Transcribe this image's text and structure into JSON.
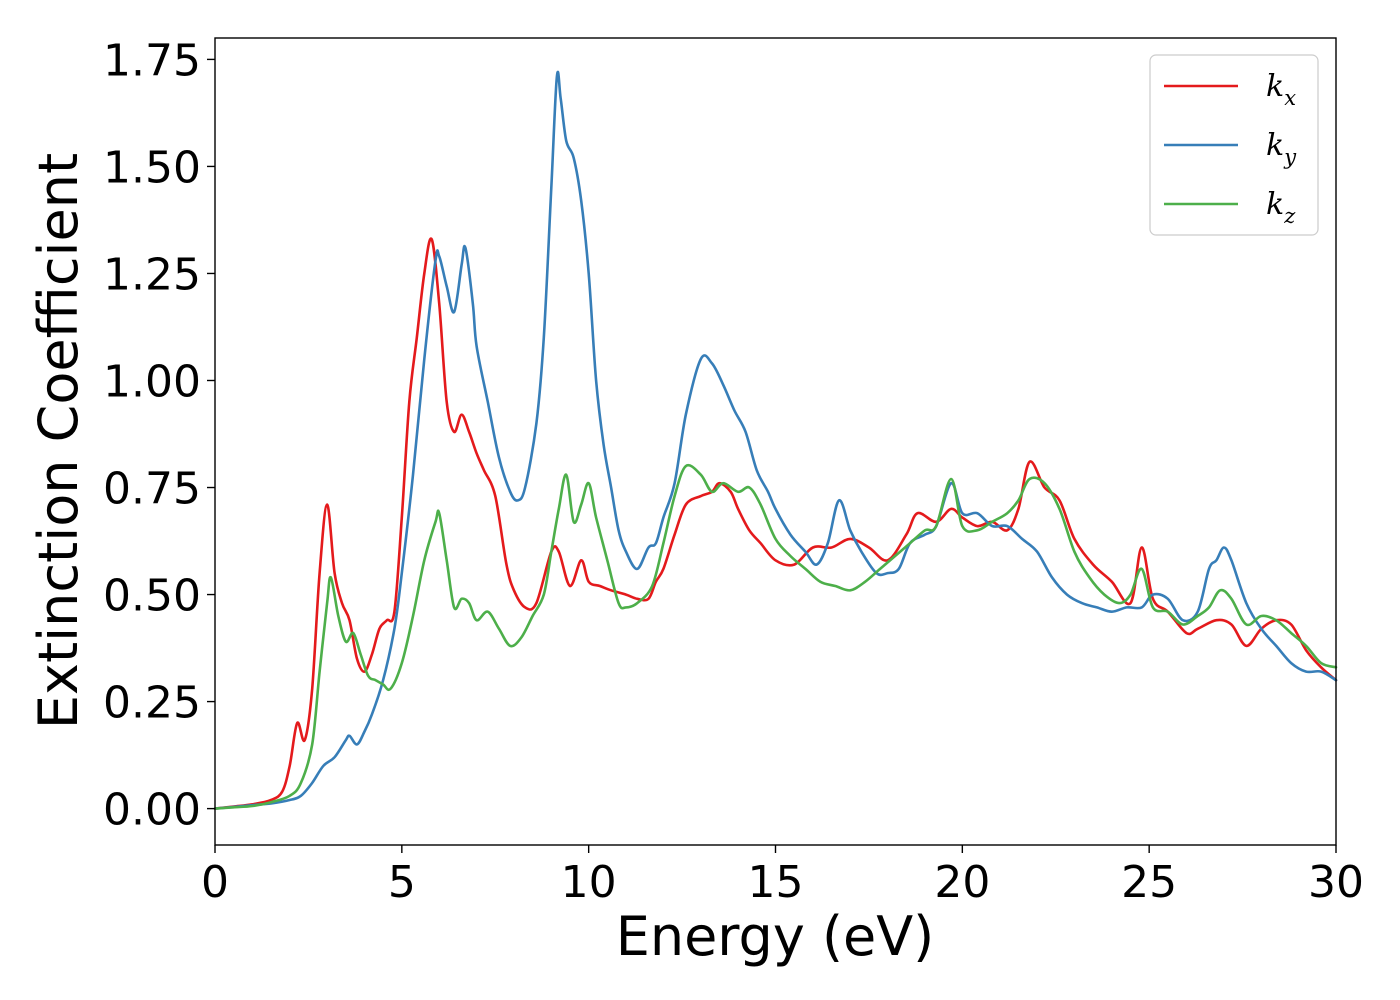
{
  "chart_data": {
    "type": "line",
    "title": "",
    "xlabel": "Energy (eV)",
    "ylabel": "Extinction Coefficient",
    "xlim": [
      0,
      30
    ],
    "ylim": [
      -0.085,
      1.8
    ],
    "xticks": [
      0,
      5,
      10,
      15,
      20,
      25,
      30
    ],
    "xtick_labels": [
      "0",
      "5",
      "10",
      "15",
      "20",
      "25",
      "30"
    ],
    "yticks": [
      0,
      0.25,
      0.5,
      0.75,
      1.0,
      1.25,
      1.5,
      1.75
    ],
    "ytick_labels": [
      "0.00",
      "0.25",
      "0.50",
      "0.75",
      "1.00",
      "1.25",
      "1.50",
      "1.75"
    ],
    "grid": false,
    "legend_position": "top-right",
    "series": [
      {
        "name": "k_x",
        "legend_base": "k",
        "legend_sub": "x",
        "color": "#e41a1c",
        "x": [
          0,
          0.5,
          1.0,
          1.5,
          1.8,
          2.0,
          2.2,
          2.4,
          2.6,
          2.8,
          3.0,
          3.2,
          3.4,
          3.6,
          3.8,
          4.0,
          4.2,
          4.4,
          4.6,
          4.8,
          5.0,
          5.2,
          5.4,
          5.6,
          5.8,
          6.0,
          6.2,
          6.4,
          6.6,
          6.8,
          7.0,
          7.2,
          7.5,
          7.8,
          8.0,
          8.3,
          8.6,
          9.0,
          9.2,
          9.5,
          9.8,
          10.0,
          10.3,
          10.6,
          11.0,
          11.3,
          11.6,
          11.8,
          12.0,
          12.3,
          12.6,
          13.0,
          13.3,
          13.5,
          13.8,
          14.0,
          14.3,
          14.6,
          15.0,
          15.5,
          16.0,
          16.5,
          17.0,
          17.5,
          18.0,
          18.5,
          18.8,
          19.3,
          19.7,
          20.0,
          20.4,
          20.8,
          21.2,
          21.5,
          21.8,
          22.2,
          22.6,
          23.0,
          23.5,
          24.0,
          24.5,
          24.8,
          25.1,
          25.5,
          26.0,
          26.3,
          26.8,
          27.2,
          27.6,
          28.0,
          28.4,
          28.8,
          29.2,
          29.6,
          30.0
        ],
        "y": [
          0.0,
          0.005,
          0.01,
          0.02,
          0.04,
          0.1,
          0.2,
          0.16,
          0.28,
          0.55,
          0.71,
          0.55,
          0.48,
          0.44,
          0.35,
          0.32,
          0.36,
          0.42,
          0.44,
          0.46,
          0.68,
          0.95,
          1.1,
          1.25,
          1.33,
          1.18,
          0.95,
          0.88,
          0.92,
          0.88,
          0.83,
          0.79,
          0.73,
          0.57,
          0.51,
          0.47,
          0.48,
          0.6,
          0.6,
          0.52,
          0.58,
          0.53,
          0.52,
          0.51,
          0.5,
          0.49,
          0.49,
          0.53,
          0.56,
          0.64,
          0.71,
          0.73,
          0.74,
          0.76,
          0.74,
          0.7,
          0.65,
          0.62,
          0.58,
          0.57,
          0.61,
          0.61,
          0.63,
          0.61,
          0.58,
          0.64,
          0.69,
          0.67,
          0.7,
          0.68,
          0.66,
          0.67,
          0.65,
          0.7,
          0.81,
          0.75,
          0.72,
          0.63,
          0.57,
          0.53,
          0.48,
          0.61,
          0.49,
          0.46,
          0.41,
          0.42,
          0.44,
          0.43,
          0.38,
          0.42,
          0.44,
          0.43,
          0.37,
          0.33,
          0.3
        ]
      },
      {
        "name": "k_y",
        "legend_base": "k",
        "legend_sub": "y",
        "color": "#377eb8",
        "x": [
          0,
          0.5,
          1.0,
          1.5,
          2.0,
          2.3,
          2.6,
          2.9,
          3.2,
          3.5,
          3.6,
          3.8,
          4.0,
          4.2,
          4.5,
          4.8,
          5.0,
          5.3,
          5.6,
          5.9,
          6.0,
          6.2,
          6.4,
          6.6,
          6.7,
          6.9,
          7.0,
          7.3,
          7.6,
          7.9,
          8.1,
          8.3,
          8.6,
          8.8,
          9.0,
          9.15,
          9.25,
          9.4,
          9.6,
          9.8,
          10.0,
          10.2,
          10.4,
          10.6,
          10.8,
          11.0,
          11.3,
          11.6,
          11.8,
          12.0,
          12.3,
          12.6,
          13.0,
          13.3,
          13.6,
          13.9,
          14.2,
          14.5,
          14.8,
          15.0,
          15.4,
          15.8,
          16.1,
          16.4,
          16.7,
          17.0,
          17.3,
          17.7,
          18.0,
          18.3,
          18.6,
          19.0,
          19.3,
          19.7,
          20.0,
          20.4,
          20.8,
          21.2,
          21.6,
          22.0,
          22.4,
          22.8,
          23.2,
          23.6,
          24.0,
          24.4,
          24.8,
          25.1,
          25.5,
          25.9,
          26.3,
          26.6,
          26.8,
          27.0,
          27.2,
          27.6,
          28.0,
          28.4,
          28.8,
          29.2,
          29.6,
          30.0
        ],
        "y": [
          0.0,
          0.004,
          0.008,
          0.012,
          0.02,
          0.03,
          0.06,
          0.1,
          0.12,
          0.16,
          0.17,
          0.15,
          0.18,
          0.22,
          0.3,
          0.42,
          0.55,
          0.78,
          1.05,
          1.28,
          1.29,
          1.22,
          1.16,
          1.27,
          1.31,
          1.18,
          1.08,
          0.95,
          0.82,
          0.74,
          0.72,
          0.75,
          0.9,
          1.1,
          1.45,
          1.71,
          1.66,
          1.56,
          1.52,
          1.42,
          1.25,
          1.0,
          0.85,
          0.75,
          0.65,
          0.6,
          0.56,
          0.61,
          0.62,
          0.68,
          0.76,
          0.92,
          1.05,
          1.04,
          0.99,
          0.93,
          0.88,
          0.79,
          0.74,
          0.7,
          0.64,
          0.6,
          0.57,
          0.62,
          0.72,
          0.65,
          0.6,
          0.55,
          0.55,
          0.56,
          0.62,
          0.64,
          0.66,
          0.76,
          0.69,
          0.69,
          0.66,
          0.66,
          0.63,
          0.6,
          0.54,
          0.5,
          0.48,
          0.47,
          0.46,
          0.47,
          0.47,
          0.5,
          0.49,
          0.44,
          0.46,
          0.56,
          0.58,
          0.61,
          0.58,
          0.48,
          0.42,
          0.38,
          0.34,
          0.32,
          0.32,
          0.3
        ]
      },
      {
        "name": "k_z",
        "legend_base": "k",
        "legend_sub": "z",
        "color": "#4daf4a",
        "x": [
          0,
          0.5,
          1.0,
          1.5,
          2.0,
          2.3,
          2.6,
          2.8,
          3.0,
          3.1,
          3.3,
          3.5,
          3.7,
          3.9,
          4.1,
          4.3,
          4.5,
          4.7,
          5.0,
          5.3,
          5.6,
          5.9,
          6.0,
          6.2,
          6.4,
          6.6,
          6.8,
          7.0,
          7.3,
          7.6,
          7.9,
          8.2,
          8.5,
          8.8,
          9.0,
          9.2,
          9.4,
          9.6,
          9.8,
          10.0,
          10.2,
          10.5,
          10.8,
          11.0,
          11.3,
          11.7,
          12.0,
          12.3,
          12.6,
          13.0,
          13.3,
          13.6,
          14.0,
          14.3,
          14.6,
          15.0,
          15.4,
          15.8,
          16.2,
          16.6,
          17.0,
          17.4,
          17.8,
          18.2,
          18.6,
          19.0,
          19.3,
          19.7,
          20.0,
          20.4,
          20.8,
          21.2,
          21.5,
          21.8,
          22.2,
          22.6,
          23.0,
          23.4,
          23.8,
          24.2,
          24.5,
          24.8,
          25.1,
          25.5,
          25.9,
          26.3,
          26.6,
          26.9,
          27.2,
          27.6,
          28.0,
          28.4,
          28.8,
          29.2,
          29.6,
          30.0
        ],
        "y": [
          0.0,
          0.003,
          0.006,
          0.015,
          0.03,
          0.06,
          0.15,
          0.32,
          0.48,
          0.54,
          0.45,
          0.39,
          0.41,
          0.36,
          0.31,
          0.3,
          0.29,
          0.28,
          0.34,
          0.45,
          0.58,
          0.67,
          0.69,
          0.58,
          0.47,
          0.49,
          0.48,
          0.44,
          0.46,
          0.42,
          0.38,
          0.4,
          0.45,
          0.5,
          0.6,
          0.7,
          0.78,
          0.67,
          0.71,
          0.76,
          0.68,
          0.58,
          0.48,
          0.47,
          0.48,
          0.52,
          0.62,
          0.73,
          0.8,
          0.78,
          0.74,
          0.76,
          0.74,
          0.75,
          0.71,
          0.63,
          0.59,
          0.56,
          0.53,
          0.52,
          0.51,
          0.53,
          0.56,
          0.59,
          0.62,
          0.65,
          0.66,
          0.77,
          0.66,
          0.65,
          0.67,
          0.69,
          0.72,
          0.77,
          0.76,
          0.7,
          0.6,
          0.54,
          0.5,
          0.48,
          0.5,
          0.56,
          0.47,
          0.46,
          0.43,
          0.45,
          0.47,
          0.51,
          0.49,
          0.43,
          0.45,
          0.44,
          0.41,
          0.38,
          0.34,
          0.33
        ]
      }
    ]
  }
}
